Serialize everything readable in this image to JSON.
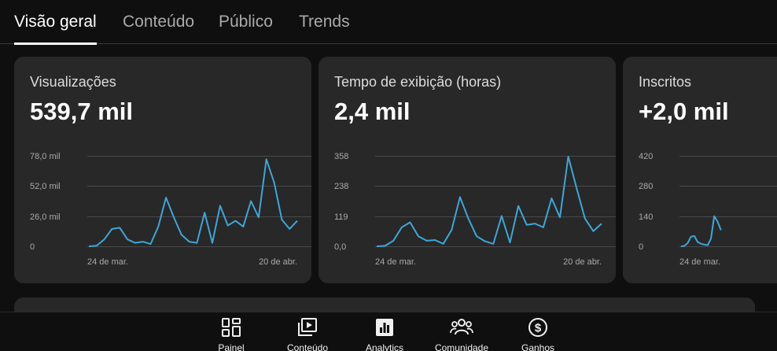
{
  "tabs": [
    {
      "label": "Visão geral",
      "active": true
    },
    {
      "label": "Conteúdo",
      "active": false
    },
    {
      "label": "Público",
      "active": false
    },
    {
      "label": "Trends",
      "active": false
    }
  ],
  "cards": [
    {
      "title": "Visualizações",
      "value": "539,7 mil"
    },
    {
      "title": "Tempo de exibição (horas)",
      "value": "2,4 mil"
    },
    {
      "title": "Inscritos",
      "value": "+2,0 mil"
    }
  ],
  "chart_data": [
    {
      "type": "line",
      "series": [
        {
          "values": [
            0,
            0.5,
            6,
            15,
            16,
            6,
            3,
            4,
            2,
            17,
            42,
            25,
            10,
            4,
            3,
            29,
            3,
            35,
            18,
            22,
            17,
            39,
            25,
            75,
            55,
            23,
            15,
            22
          ]
        }
      ],
      "yticks": [
        "78,0 mil",
        "52,0 mil",
        "26,0 mil",
        "0"
      ],
      "ylim": [
        0,
        78
      ],
      "xtick_labels": [
        "24 de mar.",
        "20 de abr."
      ],
      "line_color": "#3ea6d8",
      "grid": true
    },
    {
      "type": "line",
      "series": [
        {
          "values": [
            0,
            2,
            22,
            75,
            95,
            40,
            22,
            25,
            10,
            65,
            195,
            110,
            40,
            20,
            10,
            120,
            15,
            160,
            85,
            90,
            75,
            190,
            115,
            355,
            230,
            110,
            60,
            90
          ]
        }
      ],
      "yticks": [
        "358",
        "238",
        "119",
        "0,0"
      ],
      "ylim": [
        0,
        358
      ],
      "xtick_labels": [
        "24 de mar.",
        "20 de abr."
      ],
      "line_color": "#3ea6d8",
      "grid": true
    },
    {
      "type": "line",
      "series": [
        {
          "values": [
            0,
            2,
            15,
            45,
            48,
            20,
            12,
            8,
            5,
            35,
            140,
            115,
            75
          ]
        }
      ],
      "yticks": [
        "420",
        "280",
        "140",
        "0"
      ],
      "ylim": [
        0,
        420
      ],
      "xtick_labels": [
        "24 de mar."
      ],
      "line_color": "#3ea6d8",
      "grid": true
    }
  ],
  "nav": [
    {
      "label": "Painel",
      "icon": "dashboard-icon"
    },
    {
      "label": "Conteúdo",
      "icon": "content-icon"
    },
    {
      "label": "Analytics",
      "icon": "analytics-icon"
    },
    {
      "label": "Comunidade",
      "icon": "community-icon"
    },
    {
      "label": "Ganhos",
      "icon": "earnings-icon"
    }
  ]
}
